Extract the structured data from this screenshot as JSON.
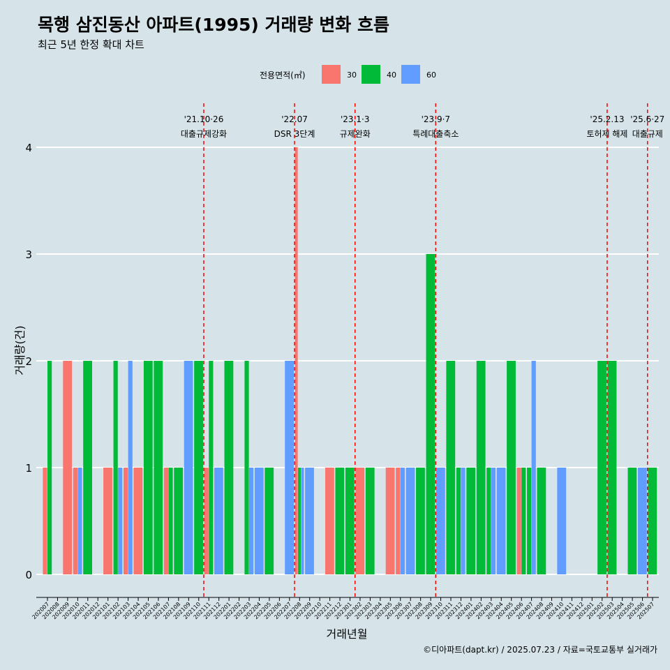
{
  "title": "목행 삼진동산 아파트(1995) 거래량 변화 흐름",
  "subtitle": "최근 5년 한정 확대 차트",
  "caption": "©디아파트(dapt.kr) / 2025.07.23 / 자료=국토교통부 실거래가",
  "legend": {
    "title": "전용면적(㎡)",
    "items": [
      {
        "label": "30",
        "color": "#f8766d"
      },
      {
        "label": "40",
        "color": "#00ba38"
      },
      {
        "label": "60",
        "color": "#619cff"
      }
    ]
  },
  "chart_data": {
    "type": "bar",
    "xlabel": "거래년월",
    "ylabel": "거래량(건)",
    "ylim": [
      0,
      4
    ],
    "yticks": [
      0,
      1,
      2,
      3,
      4
    ],
    "categories": [
      "202007",
      "202008",
      "202009",
      "202010",
      "202011",
      "202012",
      "202101",
      "202102",
      "202103",
      "202104",
      "202105",
      "202106",
      "202107",
      "202108",
      "202109",
      "202110",
      "202111",
      "202112",
      "202201",
      "202202",
      "202203",
      "202204",
      "202205",
      "202206",
      "202207",
      "202208",
      "202209",
      "202210",
      "202211",
      "202212",
      "202301",
      "202302",
      "202303",
      "202304",
      "202305",
      "202306",
      "202307",
      "202308",
      "202309",
      "202310",
      "202311",
      "202312",
      "202401",
      "202402",
      "202403",
      "202404",
      "202405",
      "202406",
      "202407",
      "202408",
      "202409",
      "202410",
      "202411",
      "202412",
      "202501",
      "202502",
      "202503",
      "202504",
      "202505",
      "202506",
      "202507"
    ],
    "series": [
      {
        "name": "30",
        "color": "#f8766d",
        "values": [
          1,
          0,
          2,
          1,
          0,
          0,
          1,
          0,
          1,
          1,
          0,
          0,
          1,
          0,
          0,
          0,
          1,
          0,
          0,
          0,
          0,
          0,
          0,
          0,
          0,
          4,
          0,
          0,
          1,
          0,
          0,
          1,
          0,
          0,
          1,
          1,
          0,
          0,
          0,
          0,
          0,
          0,
          0,
          0,
          0,
          0,
          0,
          1,
          0,
          0,
          0,
          0,
          0,
          0,
          0,
          0,
          0,
          0,
          0,
          0,
          0
        ]
      },
      {
        "name": "40",
        "color": "#00ba38",
        "values": [
          2,
          0,
          0,
          0,
          2,
          0,
          0,
          2,
          0,
          0,
          2,
          2,
          1,
          1,
          0,
          2,
          2,
          0,
          2,
          0,
          2,
          0,
          1,
          0,
          0,
          1,
          0,
          0,
          0,
          1,
          1,
          0,
          1,
          0,
          0,
          0,
          0,
          1,
          3,
          0,
          2,
          1,
          1,
          2,
          1,
          0,
          2,
          1,
          1,
          1,
          0,
          0,
          0,
          0,
          0,
          2,
          2,
          0,
          1,
          0,
          1
        ]
      },
      {
        "name": "60",
        "color": "#619cff",
        "values": [
          0,
          0,
          0,
          1,
          0,
          0,
          0,
          1,
          2,
          0,
          0,
          0,
          0,
          0,
          2,
          0,
          0,
          1,
          0,
          0,
          1,
          1,
          0,
          0,
          2,
          1,
          1,
          0,
          0,
          0,
          0,
          0,
          0,
          0,
          0,
          1,
          1,
          0,
          0,
          1,
          0,
          1,
          0,
          0,
          1,
          1,
          0,
          0,
          2,
          0,
          0,
          1,
          0,
          0,
          0,
          0,
          0,
          0,
          0,
          1,
          0
        ]
      }
    ],
    "annotations": [
      {
        "category": "202110",
        "date": "'21.10·26",
        "label": "대출규제강화"
      },
      {
        "category": "202207",
        "date": "'22.07",
        "label": "DSR 3단계"
      },
      {
        "category": "202301",
        "date": "'23.1·3",
        "label": "규제완화"
      },
      {
        "category": "202309",
        "date": "'23.9·7",
        "label": "특례대출축소"
      },
      {
        "category": "202502",
        "date": "'25.2.13",
        "label": "토허제 해제"
      },
      {
        "category": "202506",
        "date": "'25.6·27",
        "label": "대출규제"
      }
    ],
    "annotation_color": "#ff0000",
    "grid": "horizontal",
    "legend_position": "top"
  }
}
